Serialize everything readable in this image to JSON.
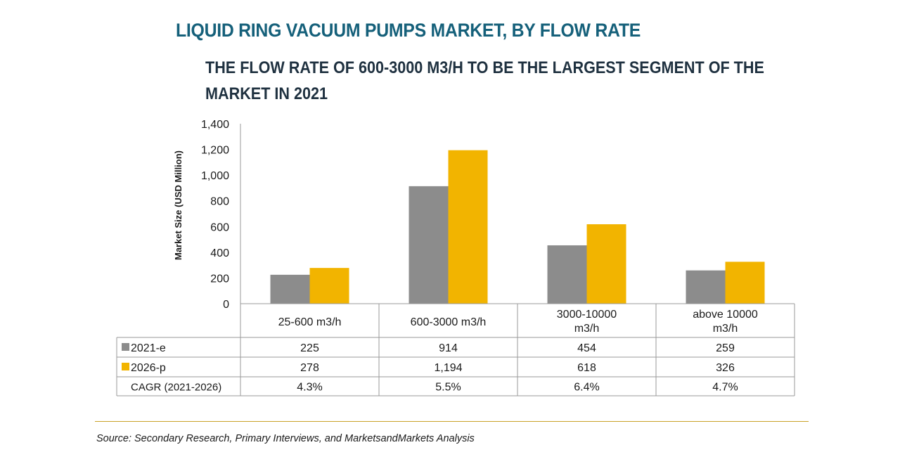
{
  "chart_data": {
    "type": "bar",
    "title": "LIQUID RING VACUUM PUMPS MARKET, BY FLOW RATE",
    "subtitle": "THE FLOW RATE OF 600-3000 M3/H TO BE THE LARGEST SEGMENT OF THE MARKET IN 2021",
    "ylabel": "Market Size (USD Million)",
    "xlabel": "",
    "ylim": [
      0,
      1400
    ],
    "yticks": [
      0,
      200,
      400,
      600,
      800,
      1000,
      1200,
      1400
    ],
    "ytick_labels": [
      "0",
      "200",
      "400",
      "600",
      "800",
      "1,000",
      "1,200",
      "1,400"
    ],
    "categories": [
      "25-600 m3/h",
      "600-3000 m3/h",
      "3000-10000 m3/h",
      "above 10000 m3/h"
    ],
    "category_lines": [
      [
        "25-600 m3/h"
      ],
      [
        "600-3000 m3/h"
      ],
      [
        "3000-10000",
        "m3/h"
      ],
      [
        "above 10000",
        "m3/h"
      ]
    ],
    "series": [
      {
        "name": "2021-e",
        "color": "#8c8c8c",
        "values": [
          225,
          914,
          454,
          259
        ],
        "labels": [
          "225",
          "914",
          "454",
          "259"
        ]
      },
      {
        "name": "2026-p",
        "color": "#f2b400",
        "values": [
          278,
          1194,
          618,
          326
        ],
        "labels": [
          "278",
          "1,194",
          "618",
          "326"
        ]
      }
    ],
    "table_rows": [
      {
        "name": "CAGR (2021-2026)",
        "values": [
          "4.3%",
          "5.5%",
          "6.4%",
          "4.7%"
        ]
      }
    ],
    "grid": false,
    "legend": "data-table"
  },
  "source": "Source: Secondary Research, Primary Interviews, and MarketsandMarkets Analysis",
  "colors": {
    "title": "#15607a",
    "subtitle": "#1f3140",
    "rule": "#c9a227"
  }
}
